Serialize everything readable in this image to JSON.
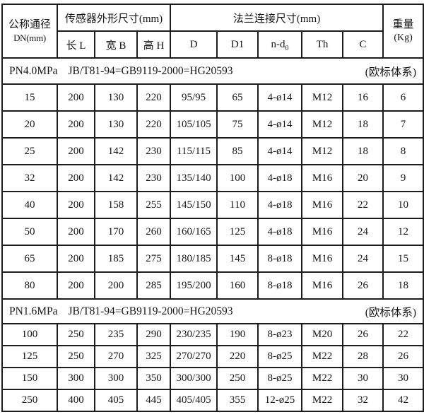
{
  "header": {
    "dn_line1": "公称通径",
    "dn_line2": "DN(mm)",
    "sensor_group": "传感器外形尺寸(mm)",
    "flange_group": "法兰连接尺寸(mm)",
    "weight_line1": "重量",
    "weight_line2": "(Kg)",
    "sub_cols": {
      "length": "长 L",
      "width": "宽 B",
      "height": "高 H",
      "d": "D",
      "d1": "D1",
      "nd_base": "n-d",
      "nd_sub": "0",
      "th": "Th",
      "c": "C"
    }
  },
  "sections": [
    {
      "pressure": "PN4.0MPa",
      "standard": "JB/T81-94=GB9119-2000=HG20593",
      "note": "(欧标体系)",
      "rows": [
        [
          "15",
          "200",
          "130",
          "220",
          "95/95",
          "65",
          "4-ø14",
          "M12",
          "16",
          "6"
        ],
        [
          "20",
          "200",
          "130",
          "220",
          "105/105",
          "75",
          "4-ø14",
          "M12",
          "18",
          "7"
        ],
        [
          "25",
          "200",
          "142",
          "230",
          "115/115",
          "85",
          "4-ø14",
          "M12",
          "18",
          "8"
        ],
        [
          "32",
          "200",
          "142",
          "230",
          "135/140",
          "100",
          "4-ø18",
          "M16",
          "20",
          "9"
        ],
        [
          "40",
          "200",
          "158",
          "255",
          "145/150",
          "110",
          "4-ø18",
          "M16",
          "22",
          "10"
        ],
        [
          "50",
          "200",
          "170",
          "260",
          "160/165",
          "125",
          "4-ø18",
          "M16",
          "24",
          "12"
        ],
        [
          "65",
          "200",
          "185",
          "275",
          "180/185",
          "145",
          "8-ø18",
          "M16",
          "24",
          "15"
        ],
        [
          "80",
          "200",
          "200",
          "285",
          "195/200",
          "160",
          "8-ø18",
          "M16",
          "26",
          "18"
        ]
      ]
    },
    {
      "pressure": "PN1.6MPa",
      "standard": "JB/T81-94=GB9119-2000=HG20593",
      "note": "(欧标体系)",
      "rows": [
        [
          "100",
          "250",
          "235",
          "290",
          "230/235",
          "190",
          "8-ø23",
          "M20",
          "26",
          "22"
        ],
        [
          "125",
          "250",
          "270",
          "325",
          "270/270",
          "220",
          "8-ø25",
          "M22",
          "28",
          "26"
        ],
        [
          "150",
          "300",
          "300",
          "350",
          "300/300",
          "250",
          "8-ø25",
          "M22",
          "30",
          "30"
        ],
        [
          "250",
          "400",
          "405",
          "445",
          "405/405",
          "355",
          "12-ø25",
          "M22",
          "32",
          "42"
        ]
      ]
    }
  ]
}
